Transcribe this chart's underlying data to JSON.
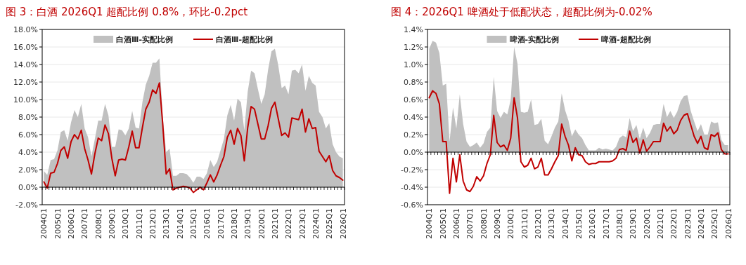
{
  "chart_data": [
    {
      "type": "area",
      "title": "图 3：白酒 2026Q1 超配比例 0.8%，环比-0.2pct",
      "categories": [
        "2004Q1",
        null,
        null,
        null,
        "2005Q1",
        null,
        null,
        null,
        "2006Q1",
        null,
        null,
        null,
        "2007Q1",
        null,
        null,
        null,
        "2008Q1",
        null,
        null,
        null,
        "2009Q1",
        null,
        null,
        null,
        "2010Q1",
        null,
        null,
        null,
        "2011Q1",
        null,
        null,
        null,
        "2012Q1",
        null,
        null,
        null,
        "2013Q1",
        null,
        null,
        null,
        "2014Q1",
        null,
        null,
        null,
        "2015Q1",
        null,
        null,
        null,
        "2016Q1",
        null,
        null,
        null,
        "2017Q1",
        null,
        null,
        null,
        "2018Q1",
        null,
        null,
        null,
        "2019Q1",
        null,
        null,
        null,
        "2020Q1",
        null,
        null,
        null,
        "2021Q1",
        null,
        null,
        null,
        "2022Q1",
        null,
        null,
        null,
        "2023Q1",
        null,
        null,
        null,
        "2024Q1",
        null,
        null,
        null,
        "2025Q1",
        null,
        null,
        null,
        "2026Q1"
      ],
      "series": [
        {
          "name": "白酒Ⅲ-实配比例",
          "type": "area",
          "color": "#c0c0c0",
          "values": [
            1.85,
            1.4,
            3.1,
            3.2,
            4.2,
            6.3,
            6.5,
            5.3,
            7.4,
            8.8,
            8.0,
            9.5,
            6.7,
            5.7,
            3.5,
            5.5,
            7.6,
            7.6,
            9.5,
            8.2,
            4.6,
            4.6,
            6.6,
            6.5,
            5.9,
            6.7,
            8.7,
            6.8,
            6.7,
            9.7,
            11.7,
            12.7,
            14.2,
            14.2,
            14.7,
            8.0,
            4.0,
            4.4,
            1.3,
            1.3,
            1.6,
            1.6,
            1.5,
            1.1,
            0.5,
            1.2,
            1.2,
            0.95,
            1.6,
            3.1,
            2.3,
            2.9,
            4.2,
            5.5,
            8.2,
            9.4,
            7.6,
            10.1,
            9.7,
            6.5,
            10.9,
            13.3,
            13.0,
            11.2,
            9.5,
            10.6,
            13.4,
            15.5,
            15.8,
            13.9,
            11.3,
            11.6,
            10.6,
            13.3,
            13.4,
            13.0,
            14.0,
            11.0,
            12.7,
            11.9,
            11.6,
            8.6,
            8.0,
            6.7,
            7.3,
            4.9,
            4.0,
            3.5,
            3.3
          ]
        },
        {
          "name": "白酒Ⅲ-超配比例",
          "type": "line",
          "color": "#c00000",
          "values": [
            0.6,
            -0.1,
            1.6,
            1.7,
            2.7,
            4.2,
            4.6,
            3.3,
            5.2,
            6.0,
            5.5,
            6.5,
            4.4,
            3.1,
            1.5,
            3.8,
            5.6,
            5.3,
            7.1,
            6.1,
            3.3,
            1.3,
            3.1,
            3.2,
            3.1,
            4.6,
            6.4,
            4.5,
            4.5,
            6.8,
            8.9,
            9.7,
            11.1,
            10.7,
            11.9,
            7.1,
            1.5,
            2.1,
            -0.3,
            -0.1,
            0.0,
            0.1,
            0.05,
            -0.1,
            -0.6,
            -0.3,
            0,
            -0.3,
            0.5,
            1.4,
            0.6,
            1.4,
            2.5,
            3.5,
            5.7,
            6.5,
            4.9,
            6.7,
            5.9,
            3.0,
            6.8,
            9.2,
            8.9,
            7.2,
            5.5,
            5.5,
            7.0,
            9.0,
            9.7,
            7.8,
            5.9,
            6.2,
            5.7,
            7.9,
            7.8,
            7.7,
            8.9,
            6.3,
            7.8,
            6.7,
            6.8,
            4.1,
            3.5,
            2.9,
            3.6,
            1.9,
            1.3,
            1.1,
            0.8
          ]
        }
      ],
      "ylim": [
        -2,
        18
      ],
      "yticks": [
        {
          "value": -2,
          "label": "-2.0%"
        },
        {
          "value": 0,
          "label": "0.0%"
        },
        {
          "value": 2,
          "label": "2.0%"
        },
        {
          "value": 4,
          "label": "4.0%"
        },
        {
          "value": 6,
          "label": "6.0%"
        },
        {
          "value": 8,
          "label": "8.0%"
        },
        {
          "value": 10,
          "label": "10.0%"
        },
        {
          "value": 12,
          "label": "12.0%"
        },
        {
          "value": 14,
          "label": "14.0%"
        },
        {
          "value": 16,
          "label": "16.0%"
        },
        {
          "value": 18,
          "label": "18.0%"
        }
      ],
      "grid": "y",
      "legend": "top"
    },
    {
      "type": "area",
      "title": "图 4：2026Q1 啤酒处于低配状态，超配比例为-0.02%",
      "categories": [
        "2004Q1",
        null,
        null,
        null,
        "2005Q1",
        null,
        null,
        null,
        "2006Q1",
        null,
        null,
        null,
        "2007Q1",
        null,
        null,
        null,
        "2008Q1",
        null,
        null,
        null,
        "2009Q1",
        null,
        null,
        null,
        "2010Q1",
        null,
        null,
        null,
        "2011Q1",
        null,
        null,
        null,
        "2012Q1",
        null,
        null,
        null,
        "2013Q1",
        null,
        null,
        null,
        "2014Q1",
        null,
        null,
        null,
        "2015Q1",
        null,
        null,
        null,
        "2016Q1",
        null,
        null,
        null,
        "2017Q1",
        null,
        null,
        null,
        "2018Q1",
        null,
        null,
        null,
        "2019Q1",
        null,
        null,
        null,
        "2020Q1",
        null,
        null,
        null,
        "2021Q1",
        null,
        null,
        null,
        "2022Q1",
        null,
        null,
        null,
        "2023Q1",
        null,
        null,
        null,
        "2024Q1",
        null,
        null,
        null,
        "2025Q1",
        null,
        null,
        null,
        "2026Q1"
      ],
      "series": [
        {
          "name": "啤酒-实配比例",
          "type": "area",
          "color": "#c0c0c0",
          "values": [
            1.18,
            1.27,
            1.25,
            1.13,
            0.76,
            0.78,
            0.12,
            0.51,
            0.27,
            0.66,
            0.32,
            0.12,
            0.06,
            0.08,
            0.11,
            0.05,
            0.1,
            0.23,
            0.28,
            0.86,
            0.47,
            0.39,
            0.46,
            0.43,
            0.6,
            1.2,
            1.01,
            0.46,
            0.45,
            0.46,
            0.6,
            0.31,
            0.32,
            0.38,
            0.13,
            0.09,
            0.18,
            0.28,
            0.35,
            0.67,
            0.48,
            0.36,
            0.18,
            0.26,
            0.2,
            0.16,
            0.08,
            0.02,
            0.02,
            0.02,
            0.05,
            0.03,
            0.04,
            0.03,
            0.02,
            0.06,
            0.16,
            0.19,
            0.17,
            0.39,
            0.24,
            0.31,
            0.15,
            0.28,
            0.16,
            0.22,
            0.31,
            0.32,
            0.32,
            0.55,
            0.4,
            0.47,
            0.39,
            0.46,
            0.58,
            0.64,
            0.65,
            0.47,
            0.35,
            0.24,
            0.32,
            0.2,
            0.2,
            0.35,
            0.33,
            0.34,
            0.14,
            0.08,
            0.08
          ]
        },
        {
          "name": "啤酒-超配比例",
          "type": "line",
          "color": "#c00000",
          "values": [
            0.62,
            0.7,
            0.67,
            0.55,
            0.12,
            0.12,
            -0.47,
            -0.07,
            -0.34,
            -0.03,
            -0.33,
            -0.43,
            -0.45,
            -0.39,
            -0.28,
            -0.33,
            -0.27,
            -0.13,
            -0.03,
            0.42,
            0.11,
            0.06,
            0.08,
            0.02,
            0.16,
            0.62,
            0.39,
            -0.11,
            -0.17,
            -0.15,
            -0.07,
            -0.19,
            -0.17,
            -0.07,
            -0.26,
            -0.26,
            -0.19,
            -0.11,
            -0.04,
            0.32,
            0.18,
            0.08,
            -0.1,
            0.05,
            -0.03,
            -0.04,
            -0.11,
            -0.14,
            -0.13,
            -0.13,
            -0.11,
            -0.11,
            -0.11,
            -0.11,
            -0.1,
            -0.07,
            0.03,
            0.04,
            0.02,
            0.24,
            0.11,
            0.16,
            -0.01,
            0.14,
            0.01,
            0.06,
            0.12,
            0.12,
            0.12,
            0.33,
            0.24,
            0.29,
            0.21,
            0.25,
            0.36,
            0.42,
            0.44,
            0.31,
            0.18,
            0.1,
            0.18,
            0.05,
            0.03,
            0.2,
            0.18,
            0.22,
            0.03,
            -0.02,
            -0.02
          ]
        }
      ],
      "ylim": [
        -0.6,
        1.4
      ],
      "yticks": [
        {
          "value": -0.6,
          "label": "-0.6%"
        },
        {
          "value": -0.4,
          "label": "-0.4%"
        },
        {
          "value": -0.2,
          "label": "-0.2%"
        },
        {
          "value": 0,
          "label": "0.0%"
        },
        {
          "value": 0.2,
          "label": "0.2%"
        },
        {
          "value": 0.4,
          "label": "0.4%"
        },
        {
          "value": 0.6,
          "label": "0.6%"
        },
        {
          "value": 0.8,
          "label": "0.8%"
        },
        {
          "value": 1.0,
          "label": "1.0%"
        },
        {
          "value": 1.2,
          "label": "1.2%"
        },
        {
          "value": 1.4,
          "label": "1.4%"
        }
      ],
      "grid": "y",
      "legend": "top"
    }
  ]
}
